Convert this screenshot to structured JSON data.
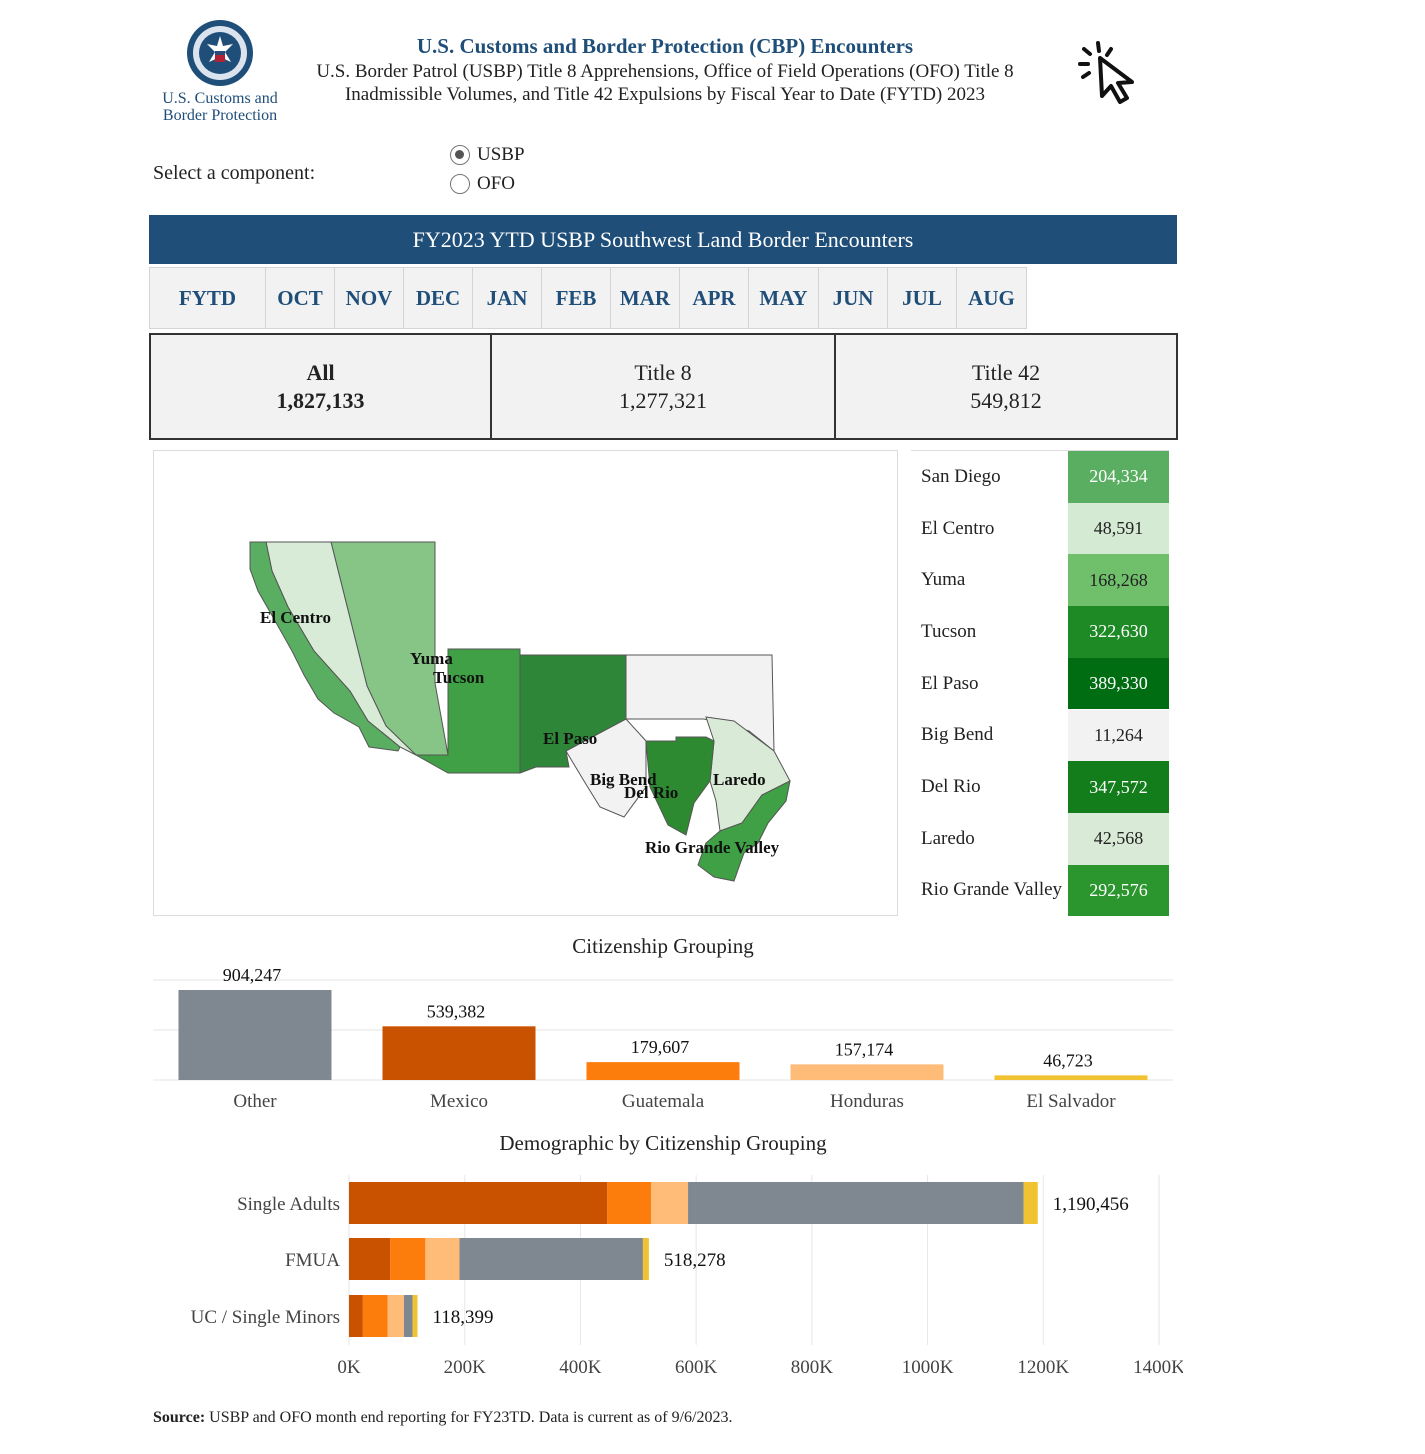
{
  "header": {
    "logo_text_line1": "U.S. Customs and",
    "logo_text_line2": "Border Protection",
    "title": "U.S. Customs and Border Protection (CBP) Encounters",
    "subtitle_line1": "U.S. Border Patrol (USBP) Title 8 Apprehensions, Office of Field Operations (OFO) Title 8",
    "subtitle_line2": "Inadmissible Volumes, and Title 42 Expulsions by Fiscal Year to Date (FYTD) 2023"
  },
  "selector": {
    "label": "Select a component:",
    "options": [
      {
        "label": "USBP",
        "checked": true
      },
      {
        "label": "OFO",
        "checked": false
      }
    ]
  },
  "banner": "FY2023 YTD USBP Southwest Land Border Encounters",
  "tabs": [
    "FYTD",
    "OCT",
    "NOV",
    "DEC",
    "JAN",
    "FEB",
    "MAR",
    "APR",
    "MAY",
    "JUN",
    "JUL",
    "AUG"
  ],
  "summary": [
    {
      "label": "All",
      "value": "1,827,133"
    },
    {
      "label": "Title 8",
      "value": "1,277,321"
    },
    {
      "label": "Title 42",
      "value": "549,812"
    }
  ],
  "map_labels": [
    "El Centro",
    "Yuma",
    "Tucson",
    "El Paso",
    "Big Bend",
    "Del Rio",
    "Laredo",
    "Rio Grande Valley"
  ],
  "sectors": [
    {
      "name": "San Diego",
      "value": "204,334",
      "color": "#5aae61",
      "text_color": "#ffffff"
    },
    {
      "name": "El Centro",
      "value": "48,591",
      "color": "#d4ead2",
      "text_color": "#222222"
    },
    {
      "name": "Yuma",
      "value": "168,268",
      "color": "#6fbf6b",
      "text_color": "#222222"
    },
    {
      "name": "Tucson",
      "value": "322,630",
      "color": "#1e8a25",
      "text_color": "#ffffff"
    },
    {
      "name": "El Paso",
      "value": "389,330",
      "color": "#006d13",
      "text_color": "#ffffff"
    },
    {
      "name": "Big Bend",
      "value": "11,264",
      "color": "#f2f2f2",
      "text_color": "#222222"
    },
    {
      "name": "Del Rio",
      "value": "347,572",
      "color": "#137d1c",
      "text_color": "#ffffff"
    },
    {
      "name": "Laredo",
      "value": "42,568",
      "color": "#d9ebd6",
      "text_color": "#222222"
    },
    {
      "name": "Rio Grande Valley",
      "value": "292,576",
      "color": "#2b962d",
      "text_color": "#ffffff"
    }
  ],
  "chart_data": [
    {
      "type": "bar",
      "title": "Citizenship Grouping",
      "categories": [
        "Other",
        "Mexico",
        "Guatemala",
        "Honduras",
        "El Salvador"
      ],
      "values": [
        904247,
        539382,
        179607,
        157174,
        46723
      ],
      "value_labels": [
        "904,247",
        "539,382",
        "179,607",
        "157,174",
        "46,723"
      ],
      "colors": [
        "#7f8790",
        "#c85200",
        "#fc7d0b",
        "#ffbc79",
        "#f1c232"
      ],
      "ylim": [
        0,
        1000000
      ],
      "grid": true
    },
    {
      "type": "bar",
      "orientation": "horizontal",
      "stacked": true,
      "title": "Demographic by Citizenship Grouping",
      "categories": [
        "Single Adults",
        "FMUA",
        "UC / Single Minors"
      ],
      "series": [
        {
          "values": [
            446000,
            71000,
            24000
          ],
          "color": "#c85200"
        },
        {
          "values": [
            76000,
            61000,
            43000
          ],
          "color": "#fc7d0b"
        },
        {
          "values": [
            64000,
            59000,
            28000
          ],
          "color": "#ffbc79"
        },
        {
          "values": [
            580000,
            317000,
            15000
          ],
          "color": "#7f8790"
        },
        {
          "values": [
            24456,
            10278,
            8399
          ],
          "color": "#f1c232"
        }
      ],
      "totals": [
        1190456,
        518278,
        118399
      ],
      "total_labels": [
        "1,190,456",
        "518,278",
        "118,399"
      ],
      "xticks": [
        "0K",
        "200K",
        "400K",
        "600K",
        "800K",
        "1000K",
        "1200K",
        "1400K"
      ],
      "xlim": [
        0,
        1400000
      ],
      "grid": true
    }
  ],
  "source": {
    "label": "Source:",
    "text": " USBP and OFO month end reporting for FY23TD. Data is current as of 9/6/2023."
  },
  "icons": {
    "logo": "cbp-seal-icon",
    "cursor": "cursor-click-icon"
  }
}
